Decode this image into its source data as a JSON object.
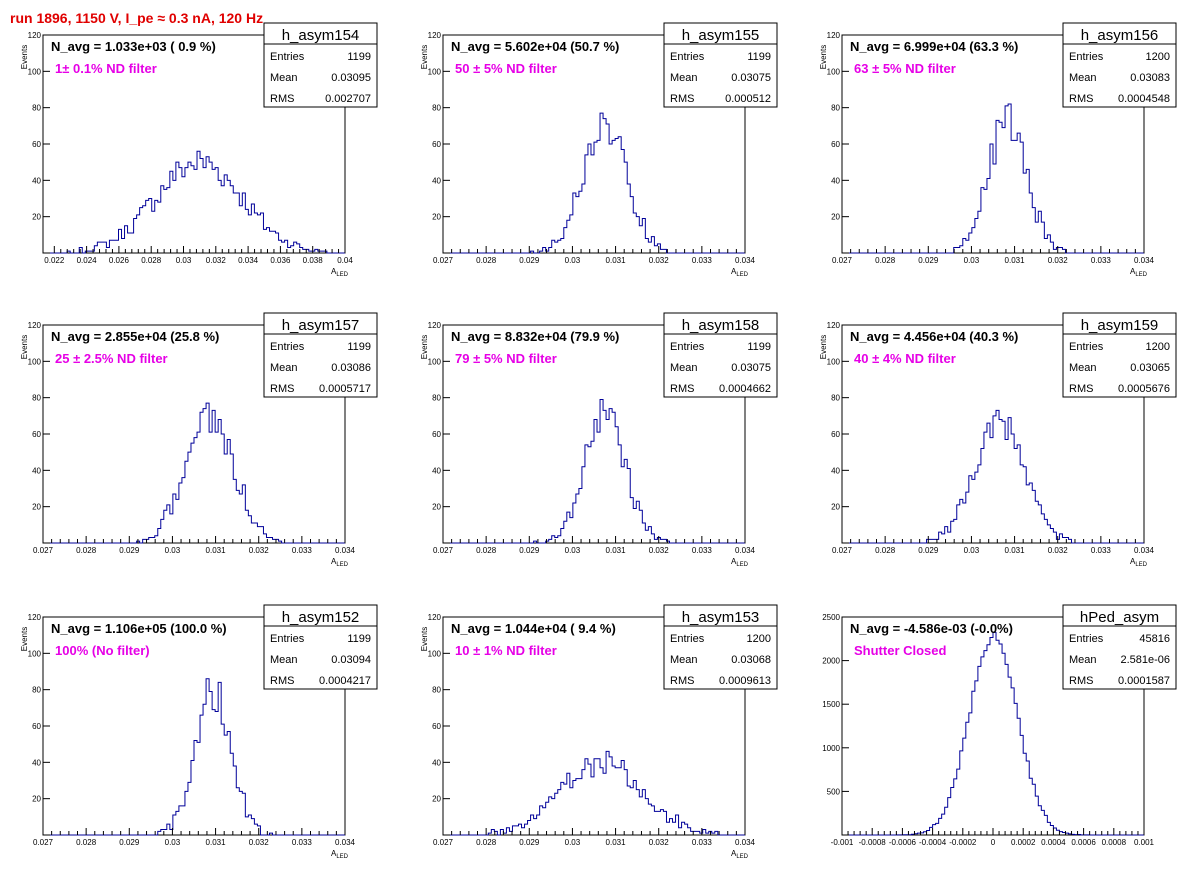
{
  "page_title": "run 1896,  1150 V, I_pe ≈ 0.3 nA, 120 Hz",
  "chart_data": [
    {
      "type": "histogram",
      "name": "h_asym154",
      "navg": "N_avg = 1.033e+03 ( 0.9 %)",
      "label": "1± 0.1% ND filter",
      "entries": "1199",
      "mean": "0.03095",
      "rms": "0.002707",
      "xlabel": "A",
      "xlabel_sub": "LED",
      "ylabel": "Events",
      "xlim": [
        0.0213,
        0.04
      ],
      "ylim": [
        0,
        120
      ],
      "xticks": [
        0.022,
        0.024,
        0.026,
        0.028,
        0.03,
        0.032,
        0.034,
        0.036,
        0.038,
        0.04
      ],
      "xtick_labels": [
        "0.022",
        "0.024",
        "0.026",
        "0.028",
        "0.03",
        "0.032",
        "0.034",
        "0.036",
        "0.038",
        "0.04"
      ],
      "yticks": [
        0,
        20,
        40,
        60,
        80,
        100,
        120
      ],
      "ytick_labels": [
        "",
        "20",
        "40",
        "60",
        "80",
        "100",
        "120"
      ],
      "center": 0.03095,
      "sigma": 0.0027,
      "peak": 50
    },
    {
      "type": "histogram",
      "name": "h_asym155",
      "navg": "N_avg = 5.602e+04 (50.7 %)",
      "label": "50 ± 5% ND filter",
      "entries": "1199",
      "mean": "0.03075",
      "rms": "0.000512",
      "xlabel": "A",
      "xlabel_sub": "LED",
      "ylabel": "Events",
      "xlim": [
        0.027,
        0.034
      ],
      "ylim": [
        0,
        120
      ],
      "xticks": [
        0.027,
        0.028,
        0.029,
        0.03,
        0.031,
        0.032,
        0.033,
        0.034
      ],
      "xtick_labels": [
        "0.027",
        "0.028",
        "0.029",
        "0.03",
        "0.031",
        "0.032",
        "0.033",
        "0.034"
      ],
      "yticks": [
        0,
        20,
        40,
        60,
        80,
        100,
        120
      ],
      "ytick_labels": [
        "",
        "20",
        "40",
        "60",
        "80",
        "100",
        "120"
      ],
      "center": 0.03075,
      "sigma": 0.000512,
      "peak": 70
    },
    {
      "type": "histogram",
      "name": "h_asym156",
      "navg": "N_avg = 6.999e+04 (63.3 %)",
      "label": "63 ± 5% ND filter",
      "entries": "1200",
      "mean": "0.03083",
      "rms": "0.0004548",
      "xlabel": "A",
      "xlabel_sub": "LED",
      "ylabel": "Events",
      "xlim": [
        0.027,
        0.034
      ],
      "ylim": [
        0,
        120
      ],
      "xticks": [
        0.027,
        0.028,
        0.029,
        0.03,
        0.031,
        0.032,
        0.033,
        0.034
      ],
      "xtick_labels": [
        "0.027",
        "0.028",
        "0.029",
        "0.03",
        "0.031",
        "0.032",
        "0.033",
        "0.034"
      ],
      "yticks": [
        0,
        20,
        40,
        60,
        80,
        100,
        120
      ],
      "ytick_labels": [
        "",
        "20",
        "40",
        "60",
        "80",
        "100",
        "120"
      ],
      "center": 0.03083,
      "sigma": 0.000455,
      "peak": 72
    },
    {
      "type": "histogram",
      "name": "h_asym157",
      "navg": "N_avg = 2.855e+04 (25.8 %)",
      "label": "25 ± 2.5% ND filter",
      "entries": "1199",
      "mean": "0.03086",
      "rms": "0.0005717",
      "xlabel": "A",
      "xlabel_sub": "LED",
      "ylabel": "Events",
      "xlim": [
        0.027,
        0.034
      ],
      "ylim": [
        0,
        120
      ],
      "xticks": [
        0.027,
        0.028,
        0.029,
        0.03,
        0.031,
        0.032,
        0.033,
        0.034
      ],
      "xtick_labels": [
        "0.027",
        "0.028",
        "0.029",
        "0.03",
        "0.031",
        "0.032",
        "0.033",
        "0.034"
      ],
      "yticks": [
        0,
        20,
        40,
        60,
        80,
        100,
        120
      ],
      "ytick_labels": [
        "",
        "20",
        "40",
        "60",
        "80",
        "100",
        "120"
      ],
      "center": 0.03086,
      "sigma": 0.000572,
      "peak": 68
    },
    {
      "type": "histogram",
      "name": "h_asym158",
      "navg": "N_avg = 8.832e+04 (79.9 %)",
      "label": "79 ± 5% ND filter",
      "entries": "1199",
      "mean": "0.03075",
      "rms": "0.0004662",
      "xlabel": "A",
      "xlabel_sub": "LED",
      "ylabel": "Events",
      "xlim": [
        0.027,
        0.034
      ],
      "ylim": [
        0,
        120
      ],
      "xticks": [
        0.027,
        0.028,
        0.029,
        0.03,
        0.031,
        0.032,
        0.033,
        0.034
      ],
      "xtick_labels": [
        "0.027",
        "0.028",
        "0.029",
        "0.03",
        "0.031",
        "0.032",
        "0.033",
        "0.034"
      ],
      "yticks": [
        0,
        20,
        40,
        60,
        80,
        100,
        120
      ],
      "ytick_labels": [
        "",
        "20",
        "40",
        "60",
        "80",
        "100",
        "120"
      ],
      "center": 0.03075,
      "sigma": 0.000466,
      "peak": 72
    },
    {
      "type": "histogram",
      "name": "h_asym159",
      "navg": "N_avg = 4.456e+04 (40.3 %)",
      "label": "40 ± 4% ND filter",
      "entries": "1200",
      "mean": "0.03065",
      "rms": "0.0005676",
      "xlabel": "A",
      "xlabel_sub": "LED",
      "ylabel": "Events",
      "xlim": [
        0.027,
        0.034
      ],
      "ylim": [
        0,
        120
      ],
      "xticks": [
        0.027,
        0.028,
        0.029,
        0.03,
        0.031,
        0.032,
        0.033,
        0.034
      ],
      "xtick_labels": [
        "0.027",
        "0.028",
        "0.029",
        "0.03",
        "0.031",
        "0.032",
        "0.033",
        "0.034"
      ],
      "yticks": [
        0,
        20,
        40,
        60,
        80,
        100,
        120
      ],
      "ytick_labels": [
        "",
        "20",
        "40",
        "60",
        "80",
        "100",
        "120"
      ],
      "center": 0.03065,
      "sigma": 0.000568,
      "peak": 66
    },
    {
      "type": "histogram",
      "name": "h_asym152",
      "navg": "N_avg = 1.106e+05 (100.0 %)",
      "label": "100% (No filter)",
      "entries": "1199",
      "mean": "0.03094",
      "rms": "0.0004217",
      "xlabel": "A",
      "xlabel_sub": "LED",
      "ylabel": "Events",
      "xlim": [
        0.027,
        0.034
      ],
      "ylim": [
        0,
        120
      ],
      "xticks": [
        0.027,
        0.028,
        0.029,
        0.03,
        0.031,
        0.032,
        0.033,
        0.034
      ],
      "xtick_labels": [
        "0.027",
        "0.028",
        "0.029",
        "0.03",
        "0.031",
        "0.032",
        "0.033",
        "0.034"
      ],
      "yticks": [
        0,
        20,
        40,
        60,
        80,
        100,
        120
      ],
      "ytick_labels": [
        "",
        "20",
        "40",
        "60",
        "80",
        "100",
        "120"
      ],
      "center": 0.03094,
      "sigma": 0.000422,
      "peak": 80
    },
    {
      "type": "histogram",
      "name": "h_asym153",
      "navg": "N_avg = 1.044e+04 ( 9.4 %)",
      "label": "10 ± 1% ND filter",
      "entries": "1200",
      "mean": "0.03068",
      "rms": "0.0009613",
      "xlabel": "A",
      "xlabel_sub": "LED",
      "ylabel": "Events",
      "xlim": [
        0.027,
        0.034
      ],
      "ylim": [
        0,
        120
      ],
      "xticks": [
        0.027,
        0.028,
        0.029,
        0.03,
        0.031,
        0.032,
        0.033,
        0.034
      ],
      "xtick_labels": [
        "0.027",
        "0.028",
        "0.029",
        "0.03",
        "0.031",
        "0.032",
        "0.033",
        "0.034"
      ],
      "yticks": [
        0,
        20,
        40,
        60,
        80,
        100,
        120
      ],
      "ytick_labels": [
        "",
        "20",
        "40",
        "60",
        "80",
        "100",
        "120"
      ],
      "center": 0.03068,
      "sigma": 0.00096,
      "peak": 40
    },
    {
      "type": "histogram",
      "name": "hPed_asym",
      "navg": "N_avg = -4.586e-03 (-0.0%)",
      "label": "Shutter Closed",
      "entries": "45816",
      "mean": "2.581e-06",
      "rms": "0.0001587",
      "xlabel": "",
      "xlabel_sub": "",
      "ylabel": "",
      "xlim": [
        -0.001,
        0.001
      ],
      "ylim": [
        0,
        2500
      ],
      "xticks": [
        -0.001,
        -0.0008,
        -0.0006,
        -0.0004,
        -0.0002,
        0,
        0.0002,
        0.0004,
        0.0006,
        0.0008,
        0.001
      ],
      "xtick_labels": [
        "-0.001",
        "-0.0008",
        "-0.0006",
        "-0.0004",
        "-0.0002",
        "0",
        "0.0002",
        "0.0004",
        "0.0006",
        "0.0008",
        "0.001"
      ],
      "yticks": [
        0,
        500,
        1000,
        1500,
        2000,
        2500
      ],
      "ytick_labels": [
        "",
        "500",
        "1000",
        "1500",
        "2000",
        "2500"
      ],
      "center": 2.6e-06,
      "sigma": 0.000159,
      "peak": 2280
    }
  ],
  "stat_labels": {
    "entries": "Entries",
    "mean": "Mean",
    "rms": "RMS"
  },
  "colors": {
    "title": "#e00000",
    "filter_label": "#e600e6",
    "histogram_line": "#000099",
    "axis": "#000000"
  }
}
